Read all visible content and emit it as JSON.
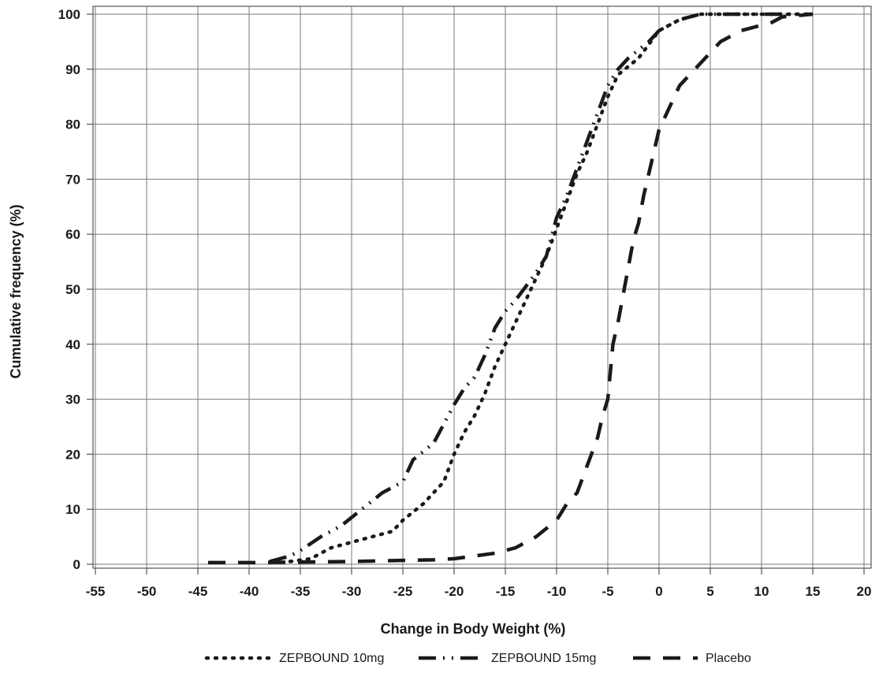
{
  "chart_data": {
    "type": "line",
    "xlabel": "Change in Body Weight (%)",
    "ylabel": "Cumulative frequency (%)",
    "xlim": [
      -55,
      20
    ],
    "ylim": [
      0,
      100
    ],
    "x_ticks": [
      -55,
      -50,
      -45,
      -40,
      -35,
      -30,
      -25,
      -20,
      -15,
      -10,
      -5,
      0,
      5,
      10,
      15,
      20
    ],
    "y_ticks": [
      0,
      10,
      20,
      30,
      40,
      50,
      60,
      70,
      80,
      90,
      100
    ],
    "grid": true,
    "legend_position": "bottom",
    "series": [
      {
        "name": "ZEPBOUND 10mg",
        "dash": "dotted",
        "x": [
          -36,
          -34,
          -32,
          -30,
          -28,
          -26,
          -25,
          -23,
          -21,
          -20,
          -19,
          -18,
          -17,
          -16,
          -15,
          -14,
          -13,
          -12,
          -11,
          -10,
          -9,
          -8,
          -7,
          -6,
          -5,
          -4,
          -2,
          0,
          2,
          4,
          6,
          8,
          11,
          15
        ],
        "y": [
          0.5,
          1,
          3,
          4,
          5,
          6,
          8,
          11,
          15,
          20,
          24,
          27,
          31,
          36,
          40,
          44,
          48,
          52,
          56,
          61,
          66,
          71,
          75,
          80,
          85,
          89,
          92,
          97,
          99,
          100,
          100,
          100,
          100,
          100
        ]
      },
      {
        "name": "ZEPBOUND 15mg",
        "dash": "dash-dot",
        "x": [
          -38,
          -36,
          -35,
          -33,
          -31,
          -29,
          -27,
          -25,
          -24,
          -22,
          -20,
          -19,
          -18,
          -17,
          -16,
          -15,
          -14,
          -12,
          -11,
          -10,
          -9,
          -8,
          -7,
          -6,
          -5,
          -4,
          -3,
          -1,
          0,
          2,
          4,
          6,
          10,
          15
        ],
        "y": [
          0.5,
          1.5,
          2.5,
          5,
          7,
          10,
          13,
          15,
          19,
          22,
          29,
          32,
          34,
          38,
          43,
          46,
          48,
          53,
          56,
          63,
          67,
          72,
          77,
          82,
          87,
          90,
          92,
          95,
          97,
          99,
          100,
          100,
          100,
          100
        ]
      },
      {
        "name": "Placebo",
        "dash": "dashed",
        "x": [
          -44,
          -40,
          -35,
          -30,
          -25,
          -22,
          -20,
          -18,
          -16,
          -14,
          -12,
          -10,
          -9,
          -8,
          -7,
          -6,
          -5.5,
          -5,
          -4.5,
          -4,
          -3.5,
          -3,
          -2.5,
          -2,
          -1.5,
          -1,
          -0.5,
          0,
          1,
          2,
          4,
          6,
          8,
          10,
          11,
          12,
          15
        ],
        "y": [
          0.3,
          0.3,
          0.4,
          0.5,
          0.7,
          0.8,
          1,
          1.5,
          2,
          3,
          5,
          8,
          11,
          13,
          18,
          23,
          27,
          30,
          40,
          44,
          49,
          54,
          59,
          62,
          67,
          71,
          75,
          79,
          83,
          87,
          91,
          95,
          97,
          98,
          98.5,
          99.5,
          100
        ]
      }
    ]
  }
}
